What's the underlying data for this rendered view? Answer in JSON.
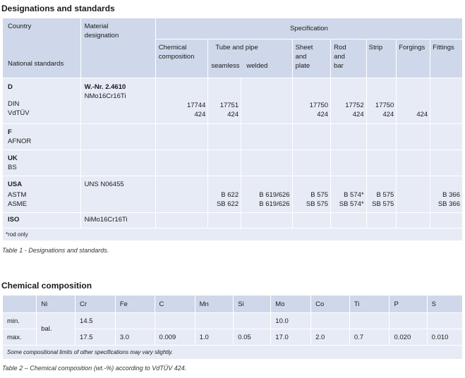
{
  "table1": {
    "title": "Designations and standards",
    "header": {
      "country": "Country",
      "national_standards": "National standards",
      "material_designation_1": "Material",
      "material_designation_2": "designation",
      "specification": "Specification",
      "chemical_composition_1": "Chemical",
      "chemical_composition_2": "composition",
      "tube_and_pipe": "Tube and pipe",
      "seamless": "seamless",
      "welded": "welded",
      "sheet_1": "Sheet",
      "sheet_2": "and",
      "sheet_3": "plate",
      "rod_1": "Rod",
      "rod_2": "and",
      "rod_3": "bar",
      "strip": "Strip",
      "forgings": "Forgings",
      "fittings": "Fittings"
    },
    "rows": {
      "d": {
        "country": "D",
        "std1": "DIN",
        "std2": "VdTÜV",
        "mat1": "W.-Nr. 2.4610",
        "mat2": "NMo16Cr16Ti",
        "chem1": "17744",
        "chem2": "424",
        "seamless1": "17751",
        "seamless2": "424",
        "sheet1": "17750",
        "sheet2": "424",
        "rod1": "17752",
        "rod2": "424",
        "strip1": "17750",
        "strip2": "424",
        "forgings2": "424"
      },
      "f": {
        "country": "F",
        "std1": "AFNOR"
      },
      "uk": {
        "country": "UK",
        "std1": "BS"
      },
      "usa": {
        "country": "USA",
        "std1": "ASTM",
        "std2": "ASME",
        "mat1": "UNS N06455",
        "seamless1": "B 622",
        "seamless2": "SB 622",
        "welded1": "B 619/626",
        "welded2": "B 619/626",
        "sheet1": "B 575",
        "sheet2": "SB 575",
        "rod1": "B 574*",
        "rod2": "SB 574*",
        "strip1": "B 575",
        "strip2": "SB 575",
        "fittings1": "B 366",
        "fittings2": "SB 366"
      },
      "iso": {
        "country": "ISO",
        "mat1": "NiMo16Cr16Ti"
      }
    },
    "note": "*rod only",
    "caption": "Table 1 - Designations and standards."
  },
  "table2": {
    "title": "Chemical composition",
    "elements": [
      "Ni",
      "Cr",
      "Fe",
      "C",
      "Mn",
      "Si",
      "Mo",
      "Co",
      "Ti",
      "P",
      "S"
    ],
    "min": {
      "label": "min.",
      "ni": "bal.",
      "cr": "14.5",
      "mo": "10.0"
    },
    "max": {
      "label": "max.",
      "cr": "17.5",
      "fe": "3.0",
      "c": "0.009",
      "mn": "1.0",
      "si": "0.05",
      "mo": "17.0",
      "co": "2.0",
      "ti": "0.7",
      "p": "0.020",
      "s": "0.010"
    },
    "note": "Some compositional limits of other specifications may vary slightly.",
    "caption": "Table 2 – Chemical composition (wt.-%) according to VdTÜV 424."
  }
}
